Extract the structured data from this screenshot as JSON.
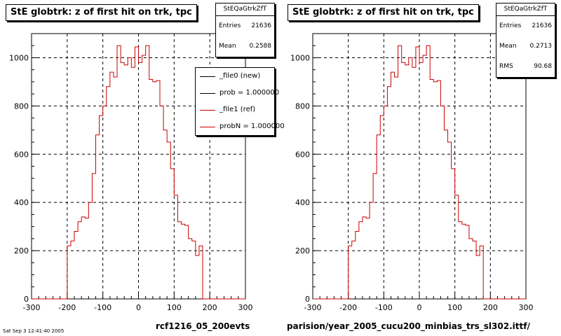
{
  "panels": [
    {
      "title": "StE globtrk: z of first hit on trk, tpc",
      "stats": {
        "name": "StEQaGtrkZfT",
        "rows": [
          {
            "label": "Entries",
            "value": "21636"
          },
          {
            "label": "Mean",
            "value": "0.2588"
          }
        ]
      },
      "legend": [
        {
          "label": "_file0 (new)",
          "color": "#000000"
        },
        {
          "label": "prob = 1.000000",
          "color": "#000000"
        },
        {
          "label": "_file1 (ref)",
          "color": "#cc0000"
        },
        {
          "label": "probN = 1.000000",
          "color": "#cc0000"
        }
      ],
      "footer": "rcf1216_05_200evts"
    },
    {
      "title": "StE globtrk: z of first hit on trk, tpc",
      "stats": {
        "name": "StEQaGtrkZfT",
        "rows": [
          {
            "label": "Entries",
            "value": "21636"
          },
          {
            "label": "Mean",
            "value": "0.2713"
          },
          {
            "label": "RMS",
            "value": "90.68"
          }
        ]
      },
      "footer": "parision/year_2005_cucu200_minbias_trs_sl302.ittf/"
    }
  ],
  "corner_text": "Sat Sep  3 12:41:40 2005",
  "chart_data": [
    {
      "type": "histogram",
      "title": "StE globtrk: z of first hit on trk, tpc",
      "xlim": [
        -300,
        300
      ],
      "ylim": [
        0,
        1100
      ],
      "xticks": [
        -300,
        -200,
        -100,
        0,
        100,
        200,
        300
      ],
      "yticks": [
        0,
        200,
        400,
        600,
        800,
        1000
      ],
      "grid": true,
      "bin_width": 10,
      "bin_start": -200,
      "series": [
        {
          "name": "_file1 (ref)",
          "color": "#cc0000",
          "values": [
            220,
            240,
            280,
            320,
            340,
            335,
            400,
            520,
            680,
            760,
            800,
            880,
            940,
            920,
            1050,
            980,
            970,
            1000,
            960,
            1045,
            980,
            1010,
            1050,
            910,
            900,
            905,
            800,
            700,
            650,
            540,
            430,
            320,
            310,
            305,
            250,
            240,
            180,
            220
          ]
        }
      ]
    },
    {
      "type": "histogram",
      "title": "StE globtrk: z of first hit on trk, tpc",
      "xlim": [
        -300,
        300
      ],
      "ylim": [
        0,
        1100
      ],
      "xticks": [
        -300,
        -200,
        -100,
        0,
        100,
        200,
        300
      ],
      "yticks": [
        0,
        200,
        400,
        600,
        800,
        1000
      ],
      "grid": true,
      "bin_width": 10,
      "bin_start": -200,
      "series": [
        {
          "name": "_file1 (ref)",
          "color": "#cc0000",
          "values": [
            220,
            240,
            280,
            320,
            340,
            335,
            400,
            520,
            680,
            760,
            800,
            880,
            940,
            920,
            1050,
            980,
            970,
            1000,
            960,
            1045,
            980,
            1010,
            1050,
            910,
            900,
            905,
            800,
            700,
            650,
            540,
            430,
            320,
            310,
            305,
            250,
            240,
            180,
            220
          ]
        }
      ]
    }
  ]
}
